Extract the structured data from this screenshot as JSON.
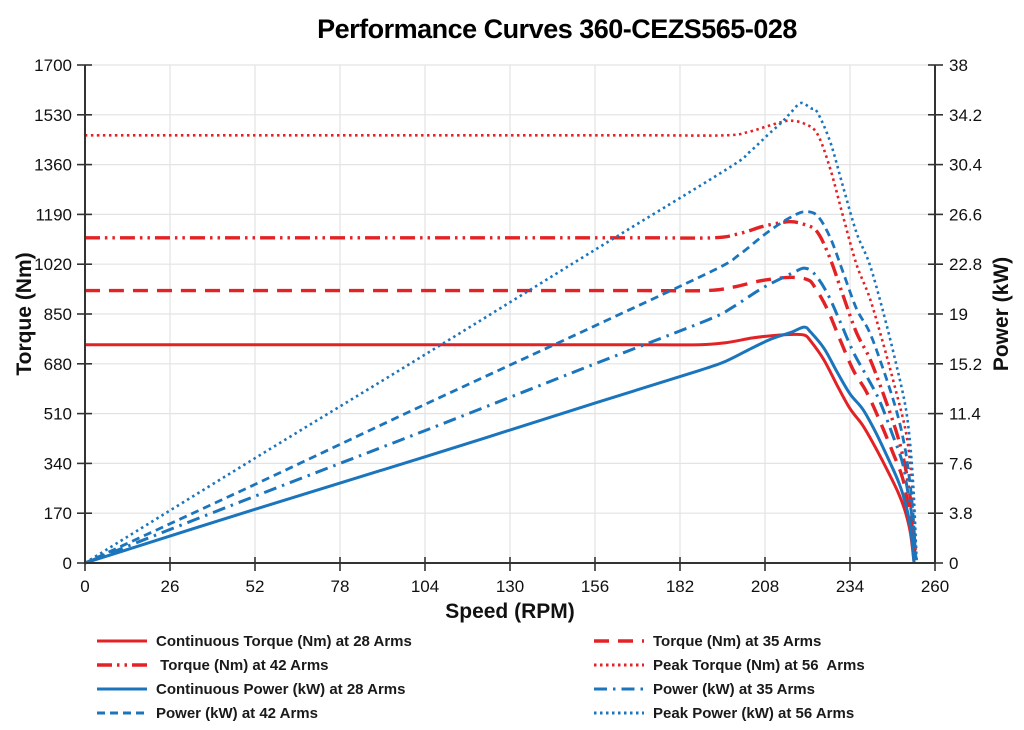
{
  "chart_data": {
    "type": "line",
    "title": "Performance Curves 360-CEZS565-028",
    "grid": true,
    "legend_position": "bottom",
    "x_axis": {
      "label": "Speed (RPM)",
      "min": 0,
      "max": 260,
      "ticks": [
        0,
        26,
        52,
        78,
        104,
        130,
        156,
        182,
        208,
        234,
        260
      ],
      "tick_labels": [
        "0",
        "26",
        "52",
        "78",
        "104",
        "130",
        "156",
        "182",
        "208",
        "234",
        "260"
      ]
    },
    "y_left": {
      "label": "Torque (Nm)",
      "min": 0,
      "max": 1700,
      "ticks": [
        0,
        170,
        340,
        510,
        680,
        850,
        1020,
        1190,
        1360,
        1530,
        1700
      ],
      "tick_labels": [
        "0",
        "170",
        "340",
        "510",
        "680",
        "850",
        "1020",
        "1190",
        "1360",
        "1530",
        "1700"
      ]
    },
    "y_right": {
      "label": "Power (kW)",
      "min": 0,
      "max": 38,
      "ticks": [
        0,
        3.8,
        7.6,
        11.4,
        15.2,
        19,
        22.8,
        26.6,
        30.4,
        34.2,
        38
      ],
      "tick_labels": [
        "0",
        "3.8",
        "7.6",
        "11.4",
        "15.2",
        "19",
        "22.8",
        "26.6",
        "30.4",
        "34.2",
        "38"
      ]
    },
    "colors": {
      "red": "#E32226",
      "blue": "#1B75BC",
      "grid": "#E3E3E3",
      "axis": "#333333",
      "text": "#111111"
    },
    "series": [
      {
        "id": "cont-torque-28",
        "label": "Continuous Torque (Nm) at 28 Arms",
        "axis": "left",
        "color": "red",
        "dash": "",
        "width": 3,
        "flat_value": 745,
        "peak_value": 780,
        "points": [
          [
            0,
            745
          ],
          [
            60,
            745
          ],
          [
            120,
            745
          ],
          [
            170,
            745
          ],
          [
            188,
            745
          ],
          [
            196,
            752
          ],
          [
            204,
            768
          ],
          [
            210,
            776
          ],
          [
            216,
            780
          ],
          [
            220,
            778
          ],
          [
            222,
            757
          ],
          [
            226,
            694
          ],
          [
            230,
            608
          ],
          [
            234,
            527
          ],
          [
            238,
            468
          ],
          [
            242,
            390
          ],
          [
            246,
            304
          ],
          [
            249,
            234
          ],
          [
            251,
            172
          ],
          [
            252.5,
            101
          ],
          [
            253.6,
            0
          ]
        ]
      },
      {
        "id": "torque-35",
        "label": "Torque (Nm) at 35 Arms",
        "axis": "left",
        "color": "red",
        "dash": "15 9",
        "width": 3.4,
        "flat_value": 930,
        "peak_value": 975,
        "points": [
          [
            0,
            930
          ],
          [
            60,
            930
          ],
          [
            120,
            930
          ],
          [
            170,
            930
          ],
          [
            190,
            930
          ],
          [
            198,
            941
          ],
          [
            206,
            962
          ],
          [
            212,
            972
          ],
          [
            217,
            975
          ],
          [
            221,
            967
          ],
          [
            223,
            946
          ],
          [
            227,
            868
          ],
          [
            231,
            761
          ],
          [
            235,
            658
          ],
          [
            239,
            585
          ],
          [
            243,
            488
          ],
          [
            247,
            380
          ],
          [
            250,
            293
          ],
          [
            251.5,
            215
          ],
          [
            253,
            127
          ],
          [
            254,
            0
          ]
        ]
      },
      {
        "id": "torque-42",
        "label": " Torque (Nm) at 42 Arms",
        "axis": "left",
        "color": "red",
        "dash": "15 5 2.5 5 2.5 5",
        "width": 3.4,
        "flat_value": 1110,
        "peak_value": 1165,
        "points": [
          [
            0,
            1110
          ],
          [
            60,
            1110
          ],
          [
            120,
            1110
          ],
          [
            170,
            1110
          ],
          [
            192,
            1110
          ],
          [
            200,
            1124
          ],
          [
            207,
            1148
          ],
          [
            212,
            1160
          ],
          [
            216,
            1165
          ],
          [
            220,
            1156
          ],
          [
            224,
            1130
          ],
          [
            228,
            1037
          ],
          [
            232,
            909
          ],
          [
            236,
            786
          ],
          [
            240,
            699
          ],
          [
            244,
            583
          ],
          [
            248,
            454
          ],
          [
            250.5,
            350
          ],
          [
            252,
            256
          ],
          [
            253.2,
            151
          ],
          [
            254.2,
            0
          ]
        ]
      },
      {
        "id": "peak-torque-56",
        "label": "Peak Torque (Nm) at 56  Arms",
        "axis": "left",
        "color": "red",
        "dash": "2.5 3.5",
        "width": 2.6,
        "flat_value": 1460,
        "peak_value": 1510,
        "points": [
          [
            0,
            1460
          ],
          [
            60,
            1460
          ],
          [
            120,
            1460
          ],
          [
            170,
            1460
          ],
          [
            196,
            1460
          ],
          [
            203,
            1472
          ],
          [
            209,
            1492
          ],
          [
            213,
            1505
          ],
          [
            216,
            1510
          ],
          [
            220,
            1500
          ],
          [
            224,
            1465
          ],
          [
            228,
            1344
          ],
          [
            232,
            1178
          ],
          [
            236,
            1019
          ],
          [
            240,
            906
          ],
          [
            244,
            755
          ],
          [
            248,
            589
          ],
          [
            251,
            453
          ],
          [
            252.5,
            332
          ],
          [
            253.5,
            196
          ],
          [
            254.4,
            0
          ]
        ]
      },
      {
        "id": "cont-power-28",
        "label": "Continuous Power (kW) at 28 Arms",
        "axis": "right",
        "color": "blue",
        "dash": "",
        "width": 3,
        "peak_value": 18,
        "points": [
          [
            0,
            0
          ],
          [
            52,
            4.1
          ],
          [
            104,
            8.1
          ],
          [
            156,
            12.2
          ],
          [
            188,
            14.7
          ],
          [
            196,
            15.4
          ],
          [
            204,
            16.4
          ],
          [
            210,
            17.1
          ],
          [
            216,
            17.6
          ],
          [
            220,
            18.0
          ],
          [
            222,
            17.6
          ],
          [
            226,
            16.4
          ],
          [
            230,
            14.6
          ],
          [
            234,
            12.9
          ],
          [
            238,
            11.7
          ],
          [
            242,
            9.9
          ],
          [
            246,
            7.8
          ],
          [
            249,
            6.1
          ],
          [
            251,
            4.5
          ],
          [
            252.5,
            2.7
          ],
          [
            253.6,
            0
          ]
        ]
      },
      {
        "id": "power-35",
        "label": "Power (kW) at 35 Arms",
        "axis": "right",
        "color": "blue",
        "dash": "13 6 2.5 6",
        "width": 3,
        "peak_value": 22.5,
        "points": [
          [
            0,
            0
          ],
          [
            52,
            5.1
          ],
          [
            104,
            10.1
          ],
          [
            156,
            15.2
          ],
          [
            190,
            18.5
          ],
          [
            198,
            19.5
          ],
          [
            206,
            20.8
          ],
          [
            212,
            21.6
          ],
          [
            217,
            22.2
          ],
          [
            220,
            22.5
          ],
          [
            223,
            22.1
          ],
          [
            227,
            20.6
          ],
          [
            231,
            18.4
          ],
          [
            235,
            16.1
          ],
          [
            239,
            14.3
          ],
          [
            243,
            12.4
          ],
          [
            247,
            9.8
          ],
          [
            250,
            7.7
          ],
          [
            251.5,
            5.7
          ],
          [
            253,
            3.4
          ],
          [
            254,
            0
          ]
        ]
      },
      {
        "id": "power-42",
        "label": "Power (kW) at 42 Arms",
        "axis": "right",
        "color": "blue",
        "dash": "8 5",
        "width": 2.8,
        "peak_value": 26.8,
        "points": [
          [
            0,
            0
          ],
          [
            52,
            6.0
          ],
          [
            104,
            12.1
          ],
          [
            156,
            18.1
          ],
          [
            192,
            22.3
          ],
          [
            200,
            23.5
          ],
          [
            207,
            24.9
          ],
          [
            212,
            25.8
          ],
          [
            216,
            26.4
          ],
          [
            220,
            26.8
          ],
          [
            224,
            26.5
          ],
          [
            228,
            24.8
          ],
          [
            232,
            22.1
          ],
          [
            236,
            19.4
          ],
          [
            240,
            17.6
          ],
          [
            244,
            14.9
          ],
          [
            248,
            11.8
          ],
          [
            250.5,
            9.2
          ],
          [
            252,
            6.8
          ],
          [
            253.2,
            4.0
          ],
          [
            254.2,
            0
          ]
        ]
      },
      {
        "id": "peak-power-56",
        "label": "Peak Power (kW) at 56 Arms",
        "axis": "right",
        "color": "blue",
        "dash": "2.5 3.5",
        "width": 2.6,
        "peak_value": 35.1,
        "points": [
          [
            0,
            0
          ],
          [
            52,
            8.0
          ],
          [
            104,
            15.9
          ],
          [
            156,
            23.9
          ],
          [
            196,
            30.0
          ],
          [
            203,
            31.3
          ],
          [
            209,
            32.7
          ],
          [
            213,
            33.6
          ],
          [
            216,
            34.4
          ],
          [
            219,
            35.1
          ],
          [
            222,
            34.7
          ],
          [
            224,
            34.4
          ],
          [
            228,
            32.1
          ],
          [
            232,
            28.6
          ],
          [
            236,
            25.2
          ],
          [
            240,
            22.8
          ],
          [
            244,
            19.3
          ],
          [
            248,
            15.3
          ],
          [
            251,
            11.9
          ],
          [
            252.5,
            8.8
          ],
          [
            253.5,
            5.2
          ],
          [
            254.4,
            0
          ]
        ]
      }
    ]
  }
}
